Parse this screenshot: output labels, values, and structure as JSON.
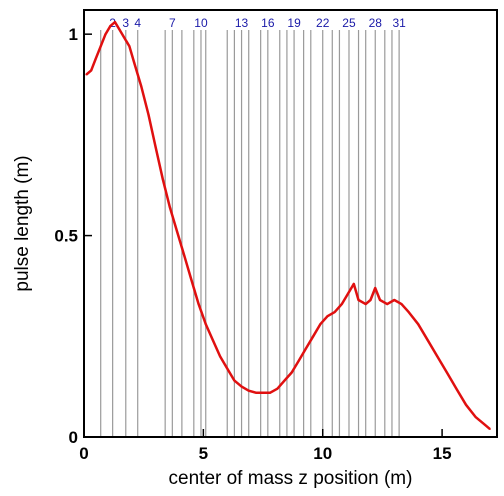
{
  "chart_data": {
    "type": "line",
    "title": "",
    "xlabel": "center of mass z position (m)",
    "ylabel": "pulse length (m)",
    "xlim": [
      0,
      17.3
    ],
    "ylim": [
      0,
      1.06
    ],
    "x_ticks": [
      0,
      5,
      10,
      15
    ],
    "y_ticks": [
      0,
      0.5,
      1
    ],
    "x_tick_labels": [
      "0",
      "5",
      "10",
      "15"
    ],
    "y_tick_labels": [
      "0",
      "0.5",
      "1"
    ],
    "grid": false,
    "legend": "none",
    "line_color": "#e01010",
    "marker_line_color": "#9a9a9a",
    "marker_label_color": "#1a1aa8",
    "marker_lines": [
      {
        "x": 0.7
      },
      {
        "x": 1.2,
        "label": "2"
      },
      {
        "x": 1.75,
        "label": "3"
      },
      {
        "x": 2.25,
        "label": "4"
      },
      {
        "x": 3.4
      },
      {
        "x": 3.7,
        "label": "7"
      },
      {
        "x": 4.1
      },
      {
        "x": 4.6
      },
      {
        "x": 4.9,
        "label": "10"
      },
      {
        "x": 5.1
      },
      {
        "x": 6.0
      },
      {
        "x": 6.3
      },
      {
        "x": 6.6,
        "label": "13"
      },
      {
        "x": 6.9
      },
      {
        "x": 7.4
      },
      {
        "x": 7.7,
        "label": "16"
      },
      {
        "x": 8.2
      },
      {
        "x": 8.5
      },
      {
        "x": 8.8,
        "label": "19"
      },
      {
        "x": 9.2
      },
      {
        "x": 9.5
      },
      {
        "x": 10.0,
        "label": "22"
      },
      {
        "x": 10.4
      },
      {
        "x": 10.7
      },
      {
        "x": 11.1,
        "label": "25"
      },
      {
        "x": 11.5
      },
      {
        "x": 11.8
      },
      {
        "x": 12.2,
        "label": "28"
      },
      {
        "x": 12.6
      },
      {
        "x": 12.9
      },
      {
        "x": 13.2,
        "label": "31"
      }
    ],
    "series": [
      {
        "values": [
          [
            0.1,
            0.9
          ],
          [
            0.3,
            0.91
          ],
          [
            0.5,
            0.94
          ],
          [
            0.7,
            0.97
          ],
          [
            0.9,
            1.0
          ],
          [
            1.1,
            1.02
          ],
          [
            1.3,
            1.03
          ],
          [
            1.5,
            1.01
          ],
          [
            1.7,
            0.99
          ],
          [
            1.9,
            0.97
          ],
          [
            2.1,
            0.93
          ],
          [
            2.4,
            0.87
          ],
          [
            2.7,
            0.8
          ],
          [
            3.0,
            0.72
          ],
          [
            3.3,
            0.64
          ],
          [
            3.6,
            0.57
          ],
          [
            3.9,
            0.51
          ],
          [
            4.2,
            0.45
          ],
          [
            4.5,
            0.39
          ],
          [
            4.8,
            0.33
          ],
          [
            5.1,
            0.28
          ],
          [
            5.4,
            0.24
          ],
          [
            5.7,
            0.2
          ],
          [
            6.0,
            0.17
          ],
          [
            6.3,
            0.14
          ],
          [
            6.6,
            0.125
          ],
          [
            6.9,
            0.115
          ],
          [
            7.2,
            0.11
          ],
          [
            7.5,
            0.11
          ],
          [
            7.8,
            0.11
          ],
          [
            8.1,
            0.12
          ],
          [
            8.4,
            0.14
          ],
          [
            8.7,
            0.16
          ],
          [
            9.0,
            0.19
          ],
          [
            9.3,
            0.22
          ],
          [
            9.6,
            0.25
          ],
          [
            9.9,
            0.28
          ],
          [
            10.2,
            0.3
          ],
          [
            10.5,
            0.31
          ],
          [
            10.8,
            0.33
          ],
          [
            11.1,
            0.36
          ],
          [
            11.3,
            0.38
          ],
          [
            11.5,
            0.34
          ],
          [
            11.8,
            0.33
          ],
          [
            12.0,
            0.34
          ],
          [
            12.2,
            0.37
          ],
          [
            12.4,
            0.34
          ],
          [
            12.7,
            0.33
          ],
          [
            13.0,
            0.34
          ],
          [
            13.3,
            0.33
          ],
          [
            13.6,
            0.31
          ],
          [
            14.0,
            0.28
          ],
          [
            14.4,
            0.24
          ],
          [
            14.8,
            0.2
          ],
          [
            15.2,
            0.16
          ],
          [
            15.6,
            0.12
          ],
          [
            16.0,
            0.08
          ],
          [
            16.4,
            0.05
          ],
          [
            16.8,
            0.03
          ],
          [
            17.0,
            0.02
          ]
        ]
      }
    ]
  }
}
